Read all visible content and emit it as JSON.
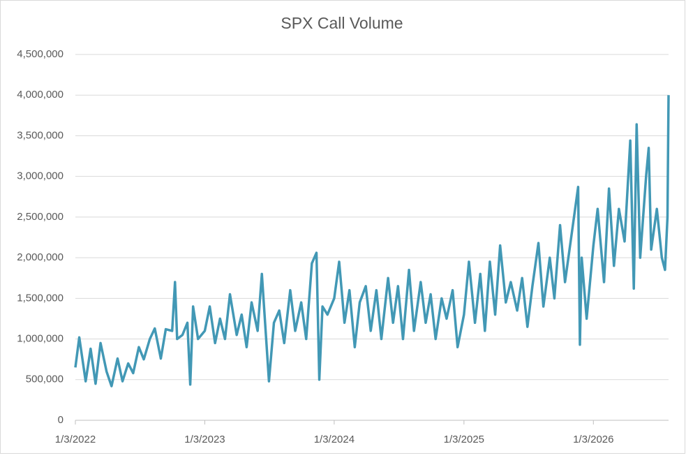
{
  "chart_data": {
    "type": "line",
    "title": "SPX Call Volume",
    "x": [
      "1/3/2022",
      "1/14/2022",
      "2/1/2022",
      "2/15/2022",
      "3/1/2022",
      "3/15/2022",
      "4/1/2022",
      "4/15/2022",
      "5/2/2022",
      "5/16/2022",
      "6/1/2022",
      "6/15/2022",
      "7/1/2022",
      "7/15/2022",
      "8/1/2022",
      "8/15/2022",
      "9/1/2022",
      "9/15/2022",
      "10/3/2022",
      "10/11/2022",
      "10/17/2022",
      "11/1/2022",
      "11/15/2022",
      "11/23/2022",
      "12/1/2022",
      "12/15/2022",
      "1/3/2023",
      "1/17/2023",
      "2/1/2023",
      "2/15/2023",
      "3/1/2023",
      "3/15/2023",
      "4/3/2023",
      "4/17/2023",
      "5/1/2023",
      "5/15/2023",
      "6/1/2023",
      "6/13/2023",
      "7/3/2023",
      "7/17/2023",
      "8/1/2023",
      "8/15/2023",
      "9/1/2023",
      "9/15/2023",
      "10/2/2023",
      "10/16/2023",
      "11/1/2023",
      "11/14/2023",
      "11/22/2023",
      "12/1/2023",
      "12/15/2023",
      "1/3/2024",
      "1/17/2024",
      "2/1/2024",
      "2/15/2024",
      "3/1/2024",
      "3/15/2024",
      "4/1/2024",
      "4/15/2024",
      "5/1/2024",
      "5/15/2024",
      "6/3/2024",
      "6/17/2024",
      "7/1/2024",
      "7/15/2024",
      "8/1/2024",
      "8/15/2024",
      "9/3/2024",
      "9/17/2024",
      "10/1/2024",
      "10/15/2024",
      "11/1/2024",
      "11/15/2024",
      "12/2/2024",
      "12/16/2024",
      "1/3/2025",
      "1/17/2025",
      "2/3/2025",
      "2/18/2025",
      "3/3/2025",
      "3/17/2025",
      "4/1/2025",
      "4/15/2025",
      "5/1/2025",
      "5/15/2025",
      "6/2/2025",
      "6/16/2025",
      "7/1/2025",
      "7/15/2025",
      "8/1/2025",
      "8/15/2025",
      "9/2/2025",
      "9/15/2025",
      "10/1/2025",
      "10/15/2025",
      "11/3/2025",
      "11/21/2025",
      "11/26/2025",
      "12/1/2025",
      "12/15/2025",
      "1/3/2026",
      "1/15/2026",
      "2/2/2026",
      "2/16/2026",
      "3/2/2026",
      "3/16/2026",
      "4/1/2026",
      "4/17/2026",
      "4/27/2026",
      "5/5/2026",
      "5/15/2026",
      "6/1/2026",
      "6/8/2026",
      "6/15/2026",
      "7/1/2026",
      "7/15/2026",
      "7/24/2026",
      "7/31/2026",
      "8/3/2026"
    ],
    "series": [
      {
        "name": "SPX Call Volume",
        "color": "#4298b5",
        "values": [
          650000,
          1020000,
          480000,
          880000,
          450000,
          950000,
          600000,
          420000,
          760000,
          480000,
          700000,
          580000,
          900000,
          750000,
          1000000,
          1130000,
          760000,
          1120000,
          1100000,
          1700000,
          1000000,
          1050000,
          1200000,
          440000,
          1400000,
          1000000,
          1100000,
          1400000,
          950000,
          1250000,
          1000000,
          1550000,
          1050000,
          1300000,
          900000,
          1450000,
          1100000,
          1800000,
          480000,
          1200000,
          1350000,
          950000,
          1600000,
          1100000,
          1450000,
          1000000,
          1930000,
          2060000,
          500000,
          1400000,
          1300000,
          1500000,
          1950000,
          1200000,
          1600000,
          900000,
          1450000,
          1650000,
          1100000,
          1600000,
          1000000,
          1750000,
          1200000,
          1650000,
          1000000,
          1850000,
          1100000,
          1700000,
          1200000,
          1550000,
          1000000,
          1500000,
          1250000,
          1600000,
          900000,
          1300000,
          1950000,
          1200000,
          1800000,
          1100000,
          1950000,
          1300000,
          2150000,
          1450000,
          1700000,
          1350000,
          1750000,
          1150000,
          1650000,
          2180000,
          1400000,
          2000000,
          1500000,
          2400000,
          1700000,
          2300000,
          2870000,
          930000,
          2000000,
          1250000,
          2150000,
          2600000,
          1700000,
          2850000,
          1900000,
          2600000,
          2200000,
          3440000,
          1620000,
          3640000,
          2000000,
          3020000,
          3350000,
          2100000,
          2600000,
          2000000,
          1850000,
          2500000,
          4000000
        ]
      }
    ],
    "xlim": [
      "1/3/2022",
      "8/3/2026"
    ],
    "xticks": [
      "1/3/2022",
      "1/3/2023",
      "1/3/2024",
      "1/3/2025",
      "1/3/2026"
    ],
    "ylim": [
      0,
      4500000
    ],
    "yticks": [
      0,
      {
        "value": 500000,
        "label": "500,000"
      },
      {
        "value": 1000000,
        "label": "1,000,000"
      },
      {
        "value": 1500000,
        "label": "1,500,000"
      },
      {
        "value": 2000000,
        "label": "2,000,000"
      },
      {
        "value": 2500000,
        "label": "2,500,000"
      },
      {
        "value": 3000000,
        "label": "3,000,000"
      },
      {
        "value": 3500000,
        "label": "3,500,000"
      },
      {
        "value": 4000000,
        "label": "4,000,000"
      },
      {
        "value": 4500000,
        "label": "4,500,000"
      }
    ],
    "grid": true
  }
}
